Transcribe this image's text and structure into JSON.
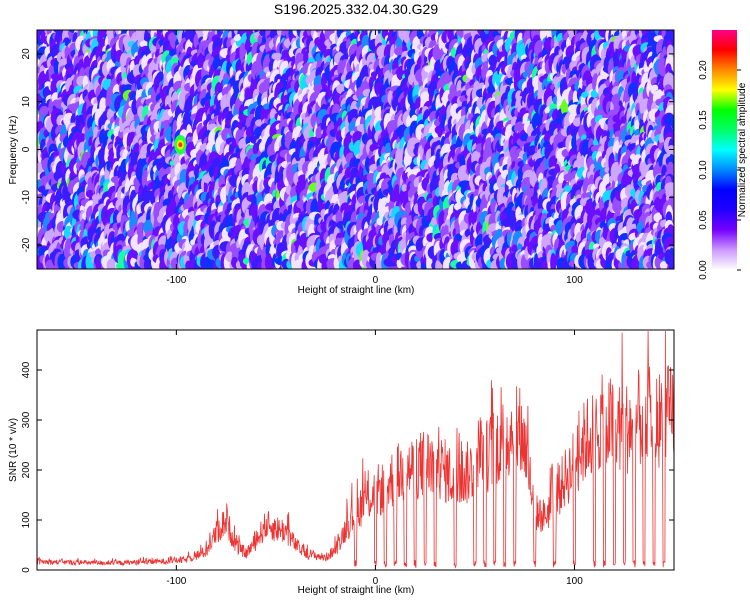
{
  "title": "S196.2025.332.04.30.G29",
  "chart_data": [
    {
      "type": "heatmap",
      "title": "S196.2025.332.04.30.G29",
      "xlabel": "Height of straight line (km)",
      "ylabel": "Frequency (Hz)",
      "xlim": [
        -170,
        150
      ],
      "ylim": [
        -25,
        25
      ],
      "xticks": [
        -100,
        0,
        100
      ],
      "yticks": [
        -20,
        -10,
        0,
        10,
        20
      ],
      "colorbar": {
        "label": "Normalized spectral amplitude",
        "range": [
          0,
          0.24
        ],
        "ticks": [
          0.0,
          0.05,
          0.1,
          0.15,
          0.2
        ],
        "tick_labels": [
          "0.00",
          "0.05",
          "0.10",
          "0.15",
          "0.20"
        ],
        "colormap": [
          "#ffffff",
          "#cc99ff",
          "#7700ff",
          "#2200ff",
          "#0000ff",
          "#0088ff",
          "#00ffff",
          "#00ff66",
          "#00ff00",
          "#ffff00",
          "#ff8800",
          "#ff0000",
          "#ff0088"
        ]
      },
      "grid": false
    },
    {
      "type": "line",
      "title": "",
      "xlabel": "Height of straight line (km)",
      "ylabel": "SNR (10 * v/v)",
      "xlim": [
        -170,
        150
      ],
      "ylim": [
        0,
        480
      ],
      "xticks": [
        -100,
        0,
        100
      ],
      "yticks": [
        0,
        100,
        200,
        300,
        400
      ],
      "line_color": "#ee3333",
      "grid": false,
      "series": [
        {
          "x": [
            -170,
            -150,
            -130,
            -110,
            -95,
            -85,
            -80,
            -75,
            -70,
            -65,
            -60,
            -55,
            -50,
            -45,
            -40,
            -35,
            -30,
            -25,
            -20,
            -15,
            -10,
            -5,
            0,
            5,
            10,
            15,
            20,
            25,
            30,
            35,
            40,
            45,
            50,
            55,
            60,
            65,
            70,
            75,
            80,
            85,
            90,
            95,
            100,
            105,
            110,
            115,
            120,
            125,
            130,
            135,
            140,
            145,
            150
          ],
          "values": [
            20,
            18,
            17,
            20,
            25,
            45,
            90,
            120,
            60,
            40,
            70,
            110,
            100,
            95,
            60,
            40,
            35,
            30,
            50,
            100,
            140,
            170,
            190,
            200,
            230,
            240,
            250,
            260,
            260,
            240,
            220,
            230,
            250,
            270,
            300,
            320,
            340,
            310,
            140,
            130,
            170,
            220,
            260,
            310,
            340,
            360,
            350,
            340,
            360,
            370,
            360,
            370,
            380
          ]
        }
      ],
      "dropouts_x": [
        -10,
        0,
        5,
        10,
        15,
        20,
        25,
        30,
        40,
        50,
        55,
        60,
        65,
        70,
        80,
        90,
        100,
        110,
        115,
        120,
        125,
        130,
        135,
        140,
        145
      ]
    }
  ]
}
